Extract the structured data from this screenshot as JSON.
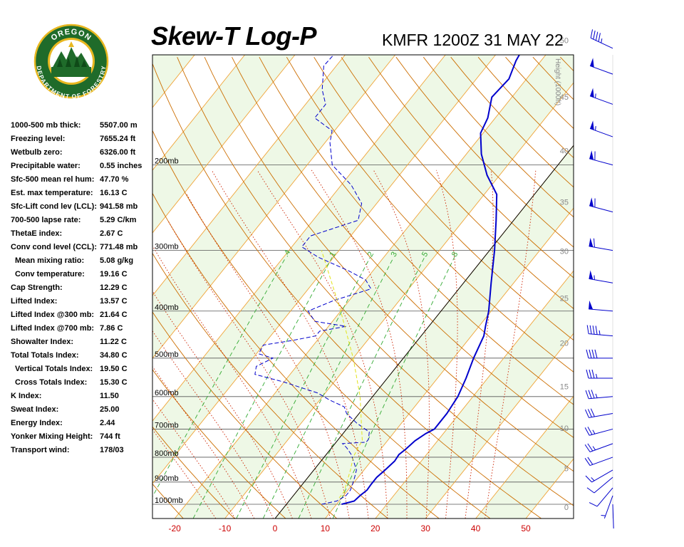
{
  "header": {
    "title": "Skew-T Log-P",
    "subtitle": "KMFR 1200Z 31 MAY 22"
  },
  "logo": {
    "top_text": "OREGON",
    "bottom_text": "DEPARTMENT OF FORESTRY",
    "ring_color": "#1f6b2a",
    "gold_color": "#e8b720"
  },
  "stats": [
    {
      "label": "1000-500 mb thick:",
      "value": "5507.00 m"
    },
    {
      "label": "Freezing level:",
      "value": "7655.24 ft"
    },
    {
      "label": "Wetbulb zero:",
      "value": "6326.00 ft"
    },
    {
      "label": "Precipitable water:",
      "value": "0.55 inches"
    },
    {
      "label": "Sfc-500 mean rel hum:",
      "value": "47.70 %"
    },
    {
      "label": "Est. max temperature:",
      "value": "16.13 C"
    },
    {
      "label": "Sfc-Lift cond lev (LCL):",
      "value": "941.58 mb"
    },
    {
      "label": "700-500 lapse rate:",
      "value": "5.29 C/km"
    },
    {
      "label": "ThetaE index:",
      "value": "2.67 C"
    },
    {
      "label": "Conv cond level (CCL):",
      "value": "771.48 mb"
    },
    {
      "label": "Mean mixing ratio:",
      "value": "5.08 g/kg",
      "indent": true
    },
    {
      "label": "Conv temperature:",
      "value": "19.16 C",
      "indent": true
    },
    {
      "label": "Cap Strength:",
      "value": "12.29 C"
    },
    {
      "label": "Lifted Index:",
      "value": "13.57 C"
    },
    {
      "label": "Lifted Index @300 mb:",
      "value": "21.64 C"
    },
    {
      "label": "Lifted Index @700 mb:",
      "value": "7.86 C"
    },
    {
      "label": "Showalter Index:",
      "value": "11.22 C"
    },
    {
      "label": "Total Totals Index:",
      "value": "34.80 C"
    },
    {
      "label": "Vertical Totals Index:",
      "value": "19.50 C",
      "indent": true
    },
    {
      "label": "Cross Totals Index:",
      "value": "15.30 C",
      "indent": true
    },
    {
      "label": "K Index:",
      "value": "11.50"
    },
    {
      "label": "Sweat Index:",
      "value": "25.00"
    },
    {
      "label": "Energy Index:",
      "value": "2.44"
    },
    {
      "label": "Yonker Mixing Height:",
      "value": "744 ft"
    },
    {
      "label": "Transport wind:",
      "value": "178/03"
    }
  ],
  "chart_data": {
    "type": "line",
    "title": "Skew-T Log-P",
    "subtitle": "KMFR 1200Z 31 MAY 22",
    "xlabel": "",
    "ylabel": "",
    "x_tick_labels": [
      "-20",
      "-10",
      "0",
      "10",
      "20",
      "30",
      "40",
      "50"
    ],
    "x_ticks": [
      -20,
      -10,
      0,
      10,
      20,
      30,
      40,
      50
    ],
    "pressure_labels": [
      "200mb",
      "300mb",
      "400mb",
      "500mb",
      "600mb",
      "700mb",
      "800mb",
      "900mb",
      "1000mb"
    ],
    "pressure_levels": [
      200,
      300,
      400,
      500,
      600,
      700,
      800,
      900,
      1000
    ],
    "height_axis_title": "Height (1000ft)",
    "height_labels": [
      "0",
      "5",
      "10",
      "15",
      "20",
      "25",
      "30",
      "35",
      "40",
      "45",
      "50"
    ],
    "height_kft": [
      0,
      5,
      10,
      15,
      20,
      25,
      30,
      35,
      40,
      45,
      50
    ],
    "mixing_ratio_labels": [
      ".4",
      "1",
      "2",
      "3",
      "5",
      "8"
    ],
    "mixing_ratio_values": [
      0.4,
      1,
      2,
      3,
      5,
      8
    ],
    "grid": true,
    "series": [
      {
        "role": "temperature",
        "color": "#0000cc",
        "style": "solid",
        "points": [
          [
            1000,
            11.0
          ],
          [
            985,
            13.0
          ],
          [
            960,
            13.3
          ],
          [
            935,
            13.8
          ],
          [
            910,
            13.7
          ],
          [
            880,
            13.7
          ],
          [
            850,
            14.2
          ],
          [
            815,
            14.7
          ],
          [
            790,
            14.5
          ],
          [
            770,
            15.0
          ],
          [
            740,
            15.5
          ],
          [
            715,
            16.5
          ],
          [
            700,
            17.5
          ],
          [
            650,
            17.5
          ],
          [
            600,
            17.0
          ],
          [
            550,
            15.7
          ],
          [
            500,
            14.0
          ],
          [
            450,
            12.5
          ],
          [
            430,
            11.3
          ],
          [
            400,
            9.5
          ],
          [
            350,
            5.5
          ],
          [
            300,
            1.0
          ],
          [
            260,
            -3.5
          ],
          [
            230,
            -7.5
          ],
          [
            210,
            -12.5
          ],
          [
            190,
            -17.0
          ],
          [
            172,
            -20.5
          ],
          [
            160,
            -21.5
          ],
          [
            145,
            -24.0
          ],
          [
            133,
            -23.5
          ],
          [
            122,
            -25.0
          ],
          [
            110,
            -26.0
          ],
          [
            103,
            -27.5
          ]
        ]
      },
      {
        "role": "dewpoint",
        "color": "#0000cc",
        "style": "dashed",
        "points": [
          [
            1000,
            7.0
          ],
          [
            985,
            9.5
          ],
          [
            960,
            10.5
          ],
          [
            935,
            10.5
          ],
          [
            910,
            10.0
          ],
          [
            880,
            9.3
          ],
          [
            850,
            8.5
          ],
          [
            815,
            6.5
          ],
          [
            790,
            5.0
          ],
          [
            765,
            3.0
          ],
          [
            750,
            1.5
          ],
          [
            745,
            6.0
          ],
          [
            735,
            6.0
          ],
          [
            710,
            5.0
          ],
          [
            680,
            1.0
          ],
          [
            650,
            -2.5
          ],
          [
            630,
            -4.0
          ],
          [
            610,
            -8.0
          ],
          [
            590,
            -11.5
          ],
          [
            560,
            -20.0
          ],
          [
            540,
            -27.0
          ],
          [
            520,
            -28.0
          ],
          [
            500,
            -26.0
          ],
          [
            490,
            -29.5
          ],
          [
            470,
            -30.0
          ],
          [
            460,
            -25.0
          ],
          [
            450,
            -21.0
          ],
          [
            440,
            -21.0
          ],
          [
            430,
            -16.5
          ],
          [
            420,
            -23.5
          ],
          [
            400,
            -26.5
          ],
          [
            380,
            -23.0
          ],
          [
            360,
            -17.5
          ],
          [
            345,
            -20.0
          ],
          [
            330,
            -25.0
          ],
          [
            310,
            -33.0
          ],
          [
            295,
            -38.0
          ],
          [
            280,
            -38.0
          ],
          [
            260,
            -31.0
          ],
          [
            240,
            -33.0
          ],
          [
            220,
            -38.0
          ],
          [
            200,
            -45.0
          ],
          [
            180,
            -49.0
          ],
          [
            170,
            -50.5
          ],
          [
            160,
            -56.0
          ],
          [
            150,
            -56.0
          ],
          [
            140,
            -59.0
          ],
          [
            125,
            -62.5
          ],
          [
            110,
            -62.0
          ],
          [
            103,
            -63.5
          ]
        ]
      },
      {
        "role": "parcel",
        "color": "#e3e31a",
        "style": "dashed",
        "points": [
          [
            970,
            9.5
          ],
          [
            942,
            9.5
          ],
          [
            900,
            8.5
          ],
          [
            850,
            7.3
          ],
          [
            800,
            5.8
          ],
          [
            760,
            5.2
          ],
          [
            740,
            5.0
          ],
          [
            700,
            3.0
          ],
          [
            600,
            -2.5
          ],
          [
            500,
            -10.0
          ],
          [
            400,
            -20.0
          ],
          [
            300,
            -33.5
          ]
        ]
      }
    ],
    "wind_barbs": [
      {
        "p": 1000,
        "dir": 178,
        "spd": 3
      },
      {
        "p": 960,
        "dir": 200,
        "spd": 5
      },
      {
        "p": 925,
        "dir": 220,
        "spd": 10
      },
      {
        "p": 880,
        "dir": 230,
        "spd": 10
      },
      {
        "p": 850,
        "dir": 240,
        "spd": 15
      },
      {
        "p": 800,
        "dir": 250,
        "spd": 20
      },
      {
        "p": 750,
        "dir": 250,
        "spd": 25
      },
      {
        "p": 700,
        "dir": 255,
        "spd": 25
      },
      {
        "p": 650,
        "dir": 260,
        "spd": 30
      },
      {
        "p": 600,
        "dir": 265,
        "spd": 35
      },
      {
        "p": 550,
        "dir": 270,
        "spd": 35
      },
      {
        "p": 500,
        "dir": 270,
        "spd": 40
      },
      {
        "p": 450,
        "dir": 275,
        "spd": 45
      },
      {
        "p": 400,
        "dir": 275,
        "spd": 50
      },
      {
        "p": 350,
        "dir": 280,
        "spd": 55
      },
      {
        "p": 300,
        "dir": 280,
        "spd": 60
      },
      {
        "p": 250,
        "dir": 285,
        "spd": 60
      },
      {
        "p": 200,
        "dir": 285,
        "spd": 60
      },
      {
        "p": 175,
        "dir": 290,
        "spd": 55
      },
      {
        "p": 150,
        "dir": 290,
        "spd": 55
      },
      {
        "p": 130,
        "dir": 290,
        "spd": 50
      },
      {
        "p": 115,
        "dir": 295,
        "spd": 45
      }
    ]
  }
}
